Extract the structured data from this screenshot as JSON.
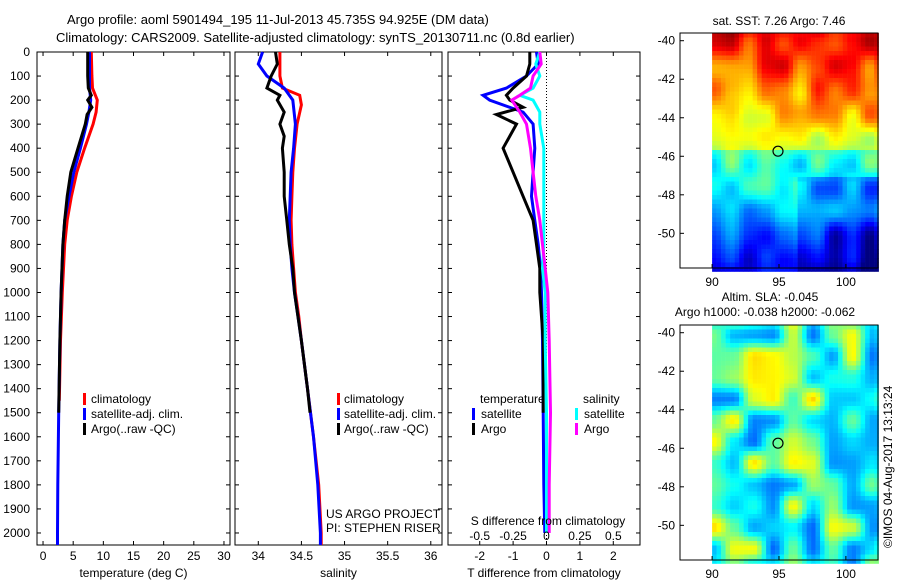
{
  "title_line1": "Argo profile: aoml 5901494_195 11-Jul-2013 45.735S 94.925E (DM data)",
  "title_line2": "Climatology: CARS2009. Satellite-adjusted climatology: synTS_20130711.nc (0.8d earlier)",
  "colors": {
    "climatology": "#ff0000",
    "satellite": "#0000ff",
    "argo": "#000000",
    "sal_satellite": "#00ffff",
    "sal_argo": "#ff00ff"
  },
  "chart_data": [
    {
      "type": "line",
      "xlabel": "temperature (deg C)",
      "ylabel": "",
      "xlim": [
        -1,
        31
      ],
      "ylim": [
        2050,
        0
      ],
      "xticks": [
        0,
        5,
        10,
        15,
        20,
        25,
        30
      ],
      "yticks": [
        0,
        100,
        200,
        300,
        400,
        500,
        600,
        700,
        800,
        900,
        1000,
        1100,
        1200,
        1300,
        1400,
        1500,
        1600,
        1700,
        1800,
        1900,
        2000
      ],
      "legend": {
        "placement": "lower-center",
        "entries": [
          "climatology",
          "satellite-adj. clim.",
          "Argo(..raw -QC)"
        ]
      },
      "series": [
        {
          "name": "climatology",
          "depth": [
            0,
            100,
            150,
            200,
            250,
            300,
            400,
            500,
            600,
            700,
            800,
            1000,
            1200,
            1450
          ],
          "values": [
            8,
            8.1,
            8.2,
            9,
            8.8,
            8.3,
            6.9,
            5.6,
            4.7,
            4.0,
            3.6,
            3.2,
            2.9,
            2.7
          ]
        },
        {
          "name": "satellite-adj. clim.",
          "depth": [
            0,
            100,
            150,
            200,
            250,
            300,
            400,
            500,
            600,
            700,
            800,
            1000,
            1200,
            1500,
            1800,
            2000,
            2050
          ],
          "values": [
            7.7,
            7.7,
            7.7,
            7.9,
            7.6,
            7.2,
            6.2,
            5.1,
            4.3,
            3.6,
            3.3,
            3.0,
            2.8,
            2.6,
            2.45,
            2.4,
            2.4
          ]
        },
        {
          "name": "Argo(..raw -QC)",
          "depth": [
            0,
            100,
            150,
            180,
            200,
            230,
            260,
            300,
            400,
            500,
            600,
            700,
            800,
            1000,
            1200,
            1500
          ],
          "values": [
            7.4,
            7.4,
            7.5,
            8.0,
            7.4,
            8.1,
            7.3,
            7.0,
            5.8,
            4.6,
            4.0,
            3.6,
            3.3,
            3.0,
            2.8,
            2.6
          ]
        }
      ],
      "annotations": []
    },
    {
      "type": "line",
      "xlabel": "salinity",
      "xlim": [
        33.73,
        36.13
      ],
      "ylim": [
        2050,
        0
      ],
      "xticks": [
        34,
        34.5,
        35,
        35.5,
        36
      ],
      "legend": {
        "placement": "lower-center",
        "entries": [
          "climatology",
          "satellite-adj. clim.",
          "Argo(..raw -QC)"
        ]
      },
      "series": [
        {
          "name": "climatology",
          "depth": [
            0,
            100,
            150,
            180,
            220,
            300,
            400,
            500,
            600,
            700,
            800,
            900,
            1000,
            1100,
            1200,
            1400,
            1600,
            1800,
            2000,
            2050
          ],
          "values": [
            34.25,
            34.25,
            34.28,
            34.48,
            34.5,
            34.45,
            34.42,
            34.4,
            34.39,
            34.38,
            34.39,
            34.41,
            34.43,
            34.47,
            34.5,
            34.57,
            34.64,
            34.7,
            34.73,
            34.73
          ]
        },
        {
          "name": "satellite-adj. clim.",
          "depth": [
            0,
            50,
            100,
            150,
            200,
            300,
            400,
            500,
            600,
            700,
            800,
            900,
            1000,
            1100,
            1200,
            1400,
            1600,
            1800,
            2000,
            2050
          ],
          "values": [
            34.05,
            34.0,
            34.1,
            34.3,
            34.4,
            34.43,
            34.41,
            34.38,
            34.37,
            34.36,
            34.37,
            34.39,
            34.42,
            34.46,
            34.5,
            34.57,
            34.64,
            34.69,
            34.72,
            34.72
          ]
        },
        {
          "name": "Argo(..raw -QC)",
          "depth": [
            0,
            50,
            100,
            150,
            180,
            200,
            250,
            300,
            350,
            400,
            500,
            600,
            700,
            800,
            900,
            1000,
            1200,
            1400,
            1500
          ],
          "values": [
            34.2,
            34.22,
            34.15,
            34.1,
            34.25,
            34.22,
            34.3,
            34.25,
            34.3,
            34.28,
            34.3,
            34.3,
            34.33,
            34.36,
            34.4,
            34.42,
            34.5,
            34.57,
            34.6
          ]
        }
      ],
      "annotations": [
        "US ARGO PROJECT",
        "PI: STEPHEN RISER"
      ]
    },
    {
      "type": "line",
      "xlabel": "T difference from climatology",
      "xlabel_top": "S difference from climatology",
      "xlim": [
        -2.95,
        2.8
      ],
      "ylim": [
        2050,
        0
      ],
      "xticks": [
        -2,
        -1,
        0,
        1,
        2
      ],
      "xticks_top": [
        "-0.5",
        "-0.25",
        "0",
        "0.25",
        "0.5"
      ],
      "legend": {
        "temperature_header": "temperature",
        "salinity_header": "salinity",
        "entries": [
          "satellite",
          "Argo",
          "satellite",
          "Argo"
        ]
      },
      "series": [
        {
          "name": "temperature satellite",
          "depth": [
            0,
            50,
            100,
            150,
            180,
            200,
            250,
            300,
            400,
            500,
            600,
            700,
            800,
            900,
            1000,
            1200,
            1500,
            1800,
            2000
          ],
          "values": [
            -0.3,
            -0.25,
            -0.6,
            -1.2,
            -1.9,
            -1.7,
            -0.7,
            -0.4,
            -0.35,
            -0.4,
            -0.45,
            -0.35,
            -0.25,
            -0.18,
            -0.15,
            -0.12,
            -0.1,
            -0.08,
            -0.05
          ]
        },
        {
          "name": "temperature Argo",
          "depth": [
            0,
            50,
            100,
            150,
            180,
            200,
            230,
            260,
            300,
            400,
            500,
            600,
            700,
            800,
            900,
            1000,
            1200,
            1500
          ],
          "values": [
            -0.5,
            -0.5,
            -0.6,
            -1.0,
            -1.2,
            -1.1,
            -0.7,
            -1.5,
            -0.9,
            -1.3,
            -1.0,
            -0.7,
            -0.4,
            -0.3,
            -0.2,
            -0.2,
            -0.1,
            -0.1
          ]
        },
        {
          "name": "salinity satellite",
          "depth": [
            0,
            50,
            100,
            150,
            180,
            200,
            250,
            300,
            400,
            500,
            600,
            700,
            800,
            900,
            1000,
            1200,
            1500,
            1800,
            2000
          ],
          "values": [
            -0.05,
            -0.08,
            -0.05,
            -0.1,
            -0.2,
            -0.1,
            -0.05,
            -0.05,
            -0.02,
            -0.02,
            -0.02,
            -0.02,
            -0.02,
            -0.03,
            -0.01,
            -0.01,
            0,
            0,
            0
          ]
        },
        {
          "name": "salinity Argo",
          "depth": [
            0,
            50,
            100,
            150,
            180,
            200,
            250,
            300,
            400,
            500,
            600,
            700,
            800,
            900,
            1000,
            1200,
            1500,
            1800,
            2000
          ],
          "values": [
            -0.05,
            -0.04,
            -0.1,
            -0.12,
            -0.2,
            -0.26,
            -0.2,
            -0.15,
            -0.12,
            -0.1,
            -0.08,
            -0.05,
            -0.03,
            -0.01,
            0.01,
            0.02,
            0.03,
            0.02,
            0.02
          ]
        }
      ]
    },
    {
      "type": "heatmap",
      "title": "sat. SST: 7.26 Argo: 7.46",
      "xlim": [
        87.6,
        102.4
      ],
      "ylim": [
        -51.8,
        -39.6
      ],
      "xticks": [
        90,
        95,
        100
      ],
      "yticks": [
        -40,
        -42,
        -44,
        -46,
        -48,
        -50
      ],
      "marker": {
        "lon": 94.925,
        "lat": -45.735
      }
    },
    {
      "type": "heatmap",
      "title_line1": "Altim. SLA: -0.045",
      "title_line2": "Argo h1000: -0.038 h2000: -0.062",
      "xlim": [
        87.6,
        102.4
      ],
      "ylim": [
        -51.8,
        -39.6
      ],
      "xticks": [
        90,
        95,
        100
      ],
      "yticks": [
        -40,
        -42,
        -44,
        -46,
        -48,
        -50
      ],
      "marker": {
        "lon": 94.925,
        "lat": -45.735
      }
    }
  ],
  "credit": "©IMOS 04-Aug-2017 13:13:24"
}
